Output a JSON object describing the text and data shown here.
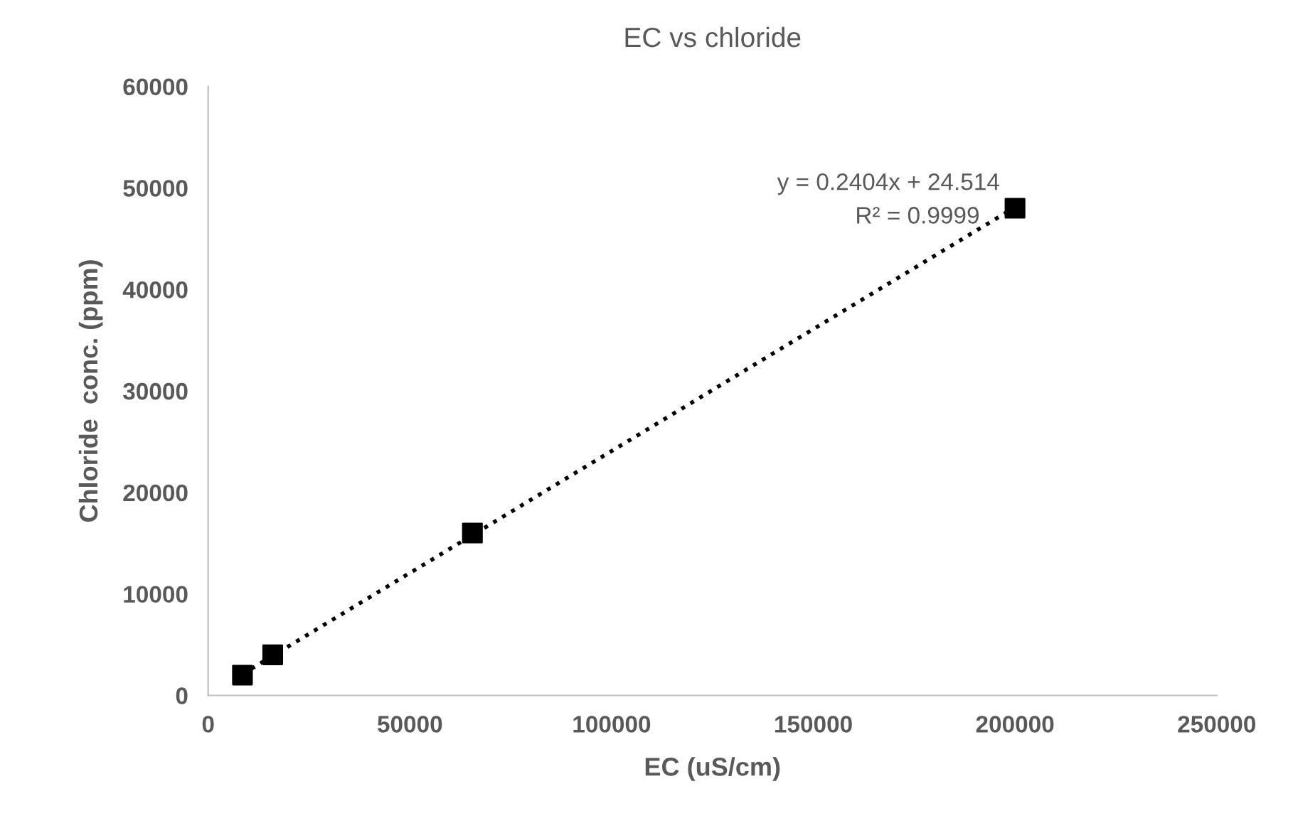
{
  "chart_data": {
    "type": "scatter",
    "title": "EC vs chloride",
    "xlabel": "EC (uS/cm)",
    "ylabel": "Chloride  conc. (ppm)",
    "x": [
      8500,
      16000,
      65500,
      200000
    ],
    "series": [
      {
        "color": "#000000",
        "marker": "square",
        "values": [
          2000,
          4000,
          16000,
          48000
        ]
      },
      {
        "type": "line",
        "color": "#000000",
        "line_style": "dotted",
        "marker": "none",
        "x": [
          8500,
          200000
        ],
        "values": [
          2100,
          48100
        ]
      }
    ],
    "annotations": [
      "y = 0.2404x + 24.514",
      "R² = 0.9999"
    ],
    "xlim": [
      0,
      250000
    ],
    "xticks": [
      0,
      50000,
      100000,
      150000,
      200000,
      250000
    ],
    "ylim": [
      0,
      60000
    ],
    "yticks": [
      0,
      10000,
      20000,
      30000,
      40000,
      50000,
      60000
    ],
    "grid": false,
    "legend": false
  }
}
